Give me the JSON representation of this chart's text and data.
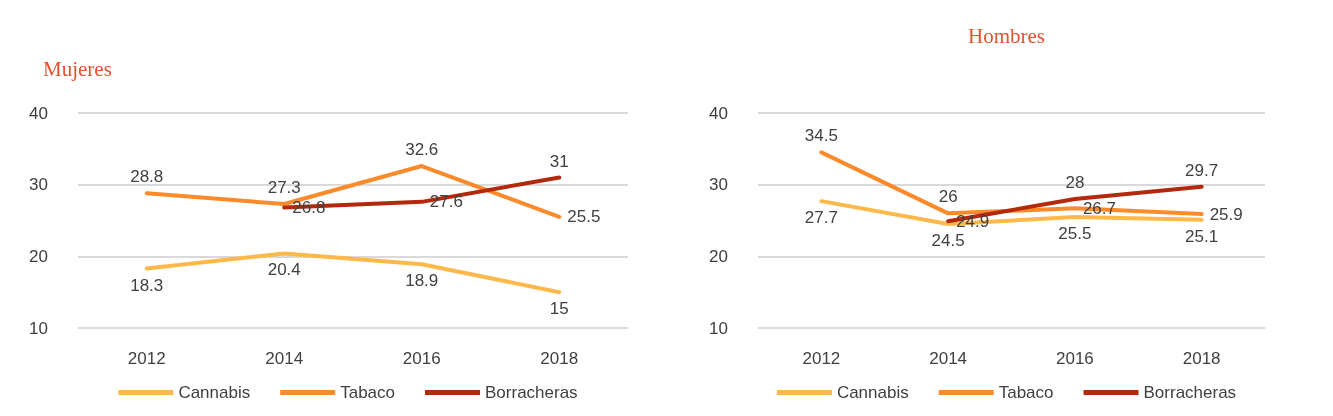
{
  "chart_data": [
    {
      "type": "line",
      "title": "Mujeres",
      "categories": [
        "2012",
        "2014",
        "2016",
        "2018"
      ],
      "ylim": [
        10,
        40
      ],
      "yticks": [
        10,
        20,
        30,
        40
      ],
      "grid": "y",
      "legend": "bottom",
      "marker": "none",
      "data_labels": true,
      "series": [
        {
          "name": "Cannabis",
          "color": "#fdb84a",
          "values": [
            18.3,
            20.4,
            18.9,
            15
          ]
        },
        {
          "name": "Tabaco",
          "color": "#fb8a2a",
          "values": [
            28.8,
            27.3,
            32.6,
            25.5
          ]
        },
        {
          "name": "Borracheras",
          "color": "#b3290b",
          "values": [
            null,
            26.8,
            27.6,
            31
          ]
        }
      ]
    },
    {
      "type": "line",
      "title": "Hombres",
      "categories": [
        "2012",
        "2014",
        "2016",
        "2018"
      ],
      "ylim": [
        10,
        40
      ],
      "yticks": [
        10,
        20,
        30,
        40
      ],
      "grid": "y",
      "legend": "bottom",
      "marker": "none",
      "data_labels": true,
      "series": [
        {
          "name": "Cannabis",
          "color": "#fdb84a",
          "values": [
            27.7,
            24.5,
            25.5,
            25.1
          ]
        },
        {
          "name": "Tabaco",
          "color": "#fb8a2a",
          "values": [
            34.5,
            26,
            26.7,
            25.9
          ]
        },
        {
          "name": "Borracheras",
          "color": "#b3290b",
          "values": [
            null,
            24.9,
            28,
            29.7
          ]
        }
      ]
    }
  ]
}
